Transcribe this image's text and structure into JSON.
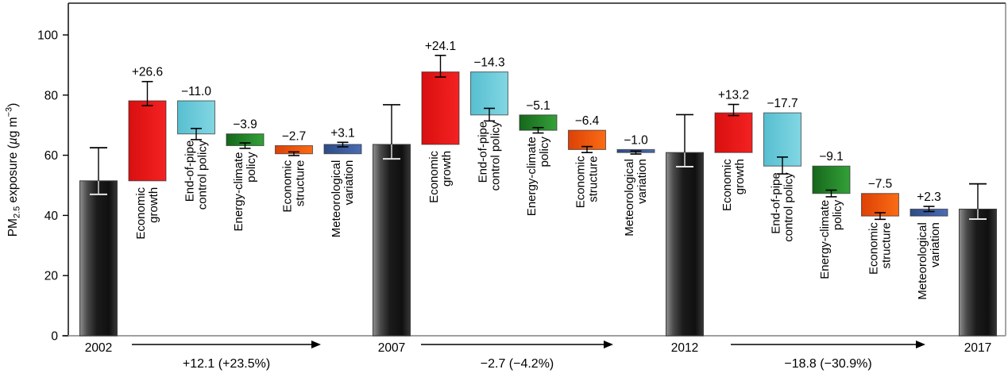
{
  "figure_title": "PM2.5 exposure decomposition waterfall chart",
  "chart_data": {
    "type": "bar",
    "subtype": "waterfall-decomposition",
    "ylabel": {
      "pre": "PM",
      "sub": "2.5",
      "mid": " exposure (",
      "mu": "µ",
      "unit": "g m",
      "sup": "−3",
      "post": ")"
    },
    "ylim": [
      0,
      110.5
    ],
    "yticks": [
      0,
      20,
      40,
      60,
      80,
      100
    ],
    "grid": false,
    "legend": "none",
    "colors": {
      "economic_growth": {
        "from": "#d90f0f",
        "to": "#f42222",
        "name": "red"
      },
      "end_of_pipe": {
        "from": "#57bfd0",
        "to": "#82d6e3",
        "name": "cyan"
      },
      "energy_climate": {
        "from": "#15671b",
        "to": "#34a139",
        "name": "green"
      },
      "economic_structure": {
        "from": "#dd4107",
        "to": "#fb6c14",
        "name": "orange"
      },
      "meteorological": {
        "from": "#2d4c86",
        "to": "#4b6cb4",
        "name": "blue"
      },
      "year_bar": {
        "from": "#909090",
        "mid": "#1b1b1b",
        "to": "#383838",
        "name": "dark-gray-gradient"
      },
      "axis_baseline": "#a0a0a0",
      "frame": "#1a1a1a",
      "error_bar": "#000000",
      "error_bar_inside_year": "#e6e6e6"
    },
    "factors": [
      {
        "id": "economic_growth",
        "lines": [
          "Economic",
          "growth"
        ]
      },
      {
        "id": "end_of_pipe",
        "lines": [
          "End-of-pipe",
          "control policy"
        ]
      },
      {
        "id": "energy_climate",
        "lines": [
          "Energy-climate",
          "policy"
        ]
      },
      {
        "id": "economic_structure",
        "lines": [
          "Economic",
          "structure"
        ]
      },
      {
        "id": "meteorological",
        "lines": [
          "Meteorological",
          "variation"
        ]
      }
    ],
    "years": [
      {
        "label": "2002",
        "value": 51.5,
        "err": [
          47.0,
          62.5
        ]
      },
      {
        "label": "2007",
        "value": 63.6,
        "err": [
          58.8,
          76.8
        ]
      },
      {
        "label": "2012",
        "value": 60.9,
        "err": [
          56.2,
          73.5
        ]
      },
      {
        "label": "2017",
        "value": 42.1,
        "err": [
          38.8,
          50.5
        ]
      }
    ],
    "sections": [
      {
        "from": "2002",
        "to": "2007",
        "arrow_label": "+12.1 (+23.5%)",
        "contributions": [
          {
            "factor": 0,
            "label": "+26.6",
            "delta": 26.6,
            "start": 51.5,
            "end": 78.1,
            "err": [
              76.5,
              84.5
            ],
            "color": "economic_growth"
          },
          {
            "factor": 1,
            "label": "−11.0",
            "delta": -11.0,
            "start": 78.1,
            "end": 67.1,
            "err": [
              65.2,
              68.9
            ],
            "color": "end_of_pipe"
          },
          {
            "factor": 2,
            "label": "−3.9",
            "delta": -3.9,
            "start": 67.1,
            "end": 63.2,
            "err": [
              62.3,
              64.1
            ],
            "color": "energy_climate"
          },
          {
            "factor": 3,
            "label": "−2.7",
            "delta": -2.7,
            "start": 63.2,
            "end": 60.5,
            "err": [
              59.9,
              61.1
            ],
            "color": "economic_structure"
          },
          {
            "factor": 4,
            "label": "+3.1",
            "delta": 3.1,
            "start": 60.5,
            "end": 63.6,
            "err": [
              62.8,
              64.3
            ],
            "color": "meteorological"
          }
        ]
      },
      {
        "from": "2007",
        "to": "2012",
        "arrow_label": "−2.7 (−4.2%)",
        "contributions": [
          {
            "factor": 0,
            "label": "+24.1",
            "delta": 24.1,
            "start": 63.6,
            "end": 87.7,
            "err": [
              86.0,
              93.2
            ],
            "color": "economic_growth"
          },
          {
            "factor": 1,
            "label": "−14.3",
            "delta": -14.3,
            "start": 87.7,
            "end": 73.4,
            "err": [
              71.4,
              75.6
            ],
            "color": "end_of_pipe"
          },
          {
            "factor": 2,
            "label": "−5.1",
            "delta": -5.1,
            "start": 73.4,
            "end": 68.3,
            "err": [
              67.4,
              69.2
            ],
            "color": "energy_climate"
          },
          {
            "factor": 3,
            "label": "−6.4",
            "delta": -6.4,
            "start": 68.3,
            "end": 61.9,
            "err": [
              60.9,
              62.9
            ],
            "color": "economic_structure"
          },
          {
            "factor": 4,
            "label": "−1.0",
            "delta": -1.0,
            "start": 61.9,
            "end": 60.9,
            "err": [
              60.4,
              61.4
            ],
            "color": "meteorological"
          }
        ]
      },
      {
        "from": "2012",
        "to": "2017",
        "arrow_label": "−18.8 (−30.9%)",
        "contributions": [
          {
            "factor": 0,
            "label": "+13.2",
            "delta": 13.2,
            "start": 60.9,
            "end": 74.1,
            "err": [
              73.2,
              76.9
            ],
            "color": "economic_growth"
          },
          {
            "factor": 1,
            "label": "−17.7",
            "delta": -17.7,
            "start": 74.1,
            "end": 56.4,
            "err": [
              53.8,
              59.4
            ],
            "color": "end_of_pipe"
          },
          {
            "factor": 2,
            "label": "−9.1",
            "delta": -9.1,
            "start": 56.4,
            "end": 47.3,
            "err": [
              46.2,
              48.4
            ],
            "color": "energy_climate"
          },
          {
            "factor": 3,
            "label": "−7.5",
            "delta": -7.5,
            "start": 47.3,
            "end": 39.8,
            "err": [
              38.7,
              40.9
            ],
            "color": "economic_structure"
          },
          {
            "factor": 4,
            "label": "+2.3",
            "delta": 2.3,
            "start": 39.8,
            "end": 42.1,
            "err": [
              41.3,
              43.0
            ],
            "color": "meteorological"
          }
        ]
      }
    ]
  }
}
